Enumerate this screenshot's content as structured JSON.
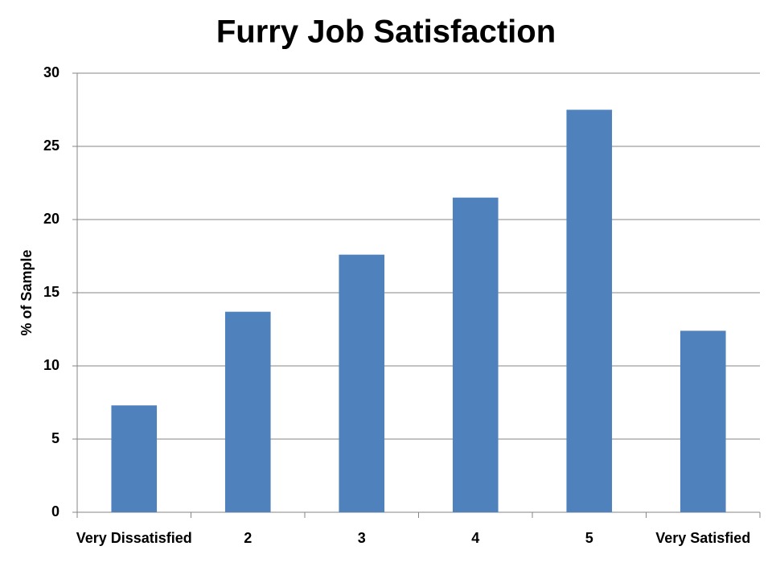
{
  "chart_data": {
    "type": "bar",
    "title": "Furry Job Satisfaction",
    "y_label": "% of Sample",
    "categories": [
      "Very Dissatisfied",
      "2",
      "3",
      "4",
      "5",
      "Very Satisfied"
    ],
    "values": [
      7.3,
      13.7,
      17.6,
      21.5,
      27.5,
      12.4
    ],
    "color": "#4f81bd",
    "ylim": [
      0,
      30
    ],
    "yticks": [
      0,
      5,
      10,
      15,
      20,
      25,
      30
    ],
    "grid": true
  }
}
